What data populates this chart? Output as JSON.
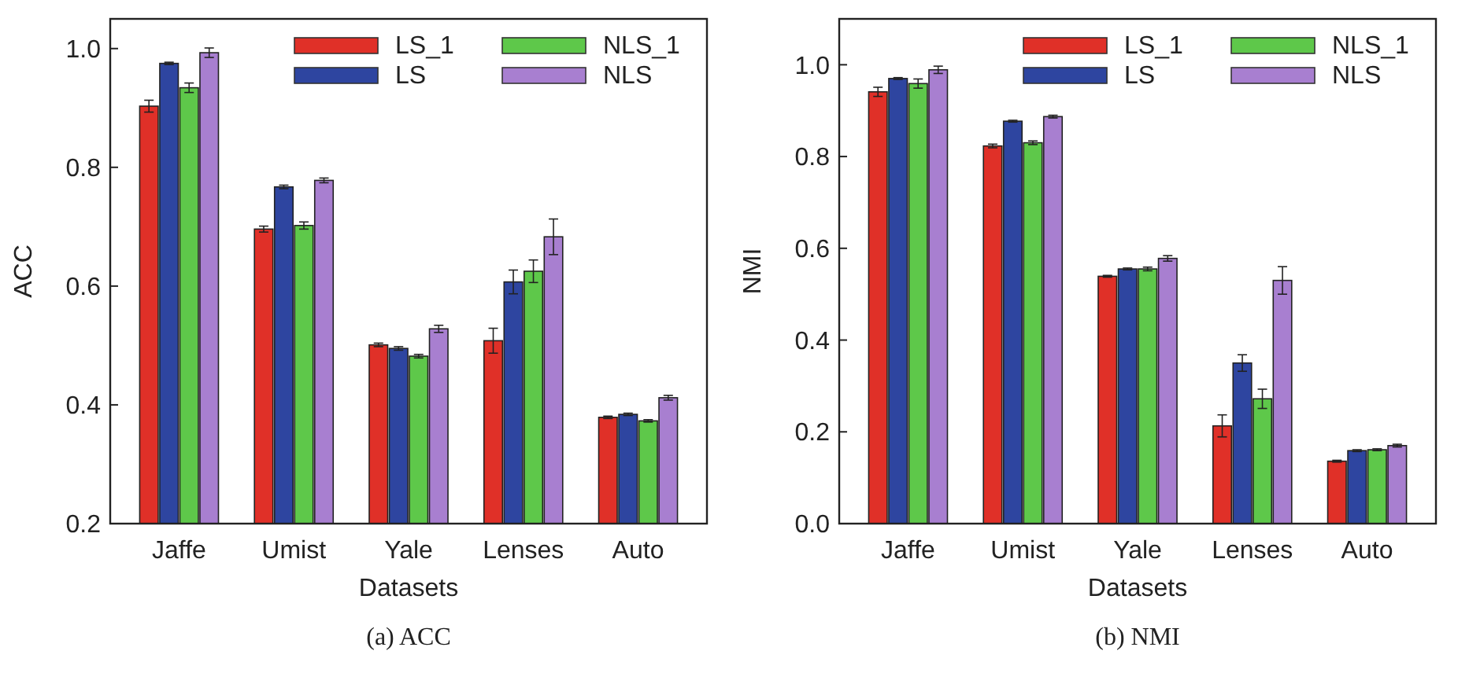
{
  "chart_data": [
    {
      "type": "bar",
      "xlabel": "Datasets",
      "ylabel": "ACC",
      "categories": [
        "Jaffe",
        "Umist",
        "Yale",
        "Lenses",
        "Auto"
      ],
      "ylim": [
        0.2,
        1.05
      ],
      "yticks": [
        {
          "value": 0.2,
          "label": "0.2"
        },
        {
          "value": 0.4,
          "label": "0.4"
        },
        {
          "value": 0.6,
          "label": "0.6"
        },
        {
          "value": 0.8,
          "label": "0.8"
        },
        {
          "value": 1.0,
          "label": "1.0"
        }
      ],
      "legend": "top right",
      "grid": false,
      "annotations": [
        "(a) ACC"
      ],
      "series": [
        {
          "name": "LS_1",
          "color": "#e03028",
          "values": [
            0.903,
            0.696,
            0.501,
            0.508,
            0.379
          ],
          "errors": [
            0.01,
            0.005,
            0.003,
            0.021,
            0.002
          ]
        },
        {
          "name": "LS",
          "color": "#2e45a0",
          "values": [
            0.975,
            0.767,
            0.495,
            0.607,
            0.384
          ],
          "errors": [
            0.002,
            0.003,
            0.003,
            0.02,
            0.002
          ]
        },
        {
          "name": "NLS_1",
          "color": "#5ec84a",
          "values": [
            0.934,
            0.702,
            0.482,
            0.625,
            0.373
          ],
          "errors": [
            0.008,
            0.006,
            0.003,
            0.019,
            0.002
          ]
        },
        {
          "name": "NLS",
          "color": "#a87fd0",
          "values": [
            0.993,
            0.778,
            0.528,
            0.683,
            0.412
          ],
          "errors": [
            0.008,
            0.004,
            0.006,
            0.03,
            0.004
          ]
        }
      ]
    },
    {
      "type": "bar",
      "xlabel": "Datasets",
      "ylabel": "NMI",
      "categories": [
        "Jaffe",
        "Umist",
        "Yale",
        "Lenses",
        "Auto"
      ],
      "ylim": [
        0,
        1.1
      ],
      "yticks": [
        {
          "value": 0,
          "label": "0.0"
        },
        {
          "value": 0.2,
          "label": "0.2"
        },
        {
          "value": 0.4,
          "label": "0.4"
        },
        {
          "value": 0.6,
          "label": "0.6"
        },
        {
          "value": 0.8,
          "label": "0.8"
        },
        {
          "value": 1.0,
          "label": "1.0"
        }
      ],
      "legend": "top right",
      "grid": false,
      "annotations": [
        "(b) NMI"
      ],
      "series": [
        {
          "name": "LS_1",
          "color": "#e03028",
          "values": [
            0.941,
            0.823,
            0.539,
            0.213,
            0.136
          ],
          "errors": [
            0.01,
            0.004,
            0.002,
            0.024,
            0.002
          ]
        },
        {
          "name": "LS",
          "color": "#2e45a0",
          "values": [
            0.97,
            0.877,
            0.555,
            0.35,
            0.159
          ],
          "errors": [
            0.002,
            0.002,
            0.002,
            0.018,
            0.002
          ]
        },
        {
          "name": "NLS_1",
          "color": "#5ec84a",
          "values": [
            0.959,
            0.83,
            0.555,
            0.272,
            0.161
          ],
          "errors": [
            0.01,
            0.004,
            0.004,
            0.021,
            0.002
          ]
        },
        {
          "name": "NLS",
          "color": "#a87fd0",
          "values": [
            0.989,
            0.887,
            0.578,
            0.53,
            0.17
          ],
          "errors": [
            0.008,
            0.003,
            0.006,
            0.03,
            0.003
          ]
        }
      ]
    }
  ]
}
